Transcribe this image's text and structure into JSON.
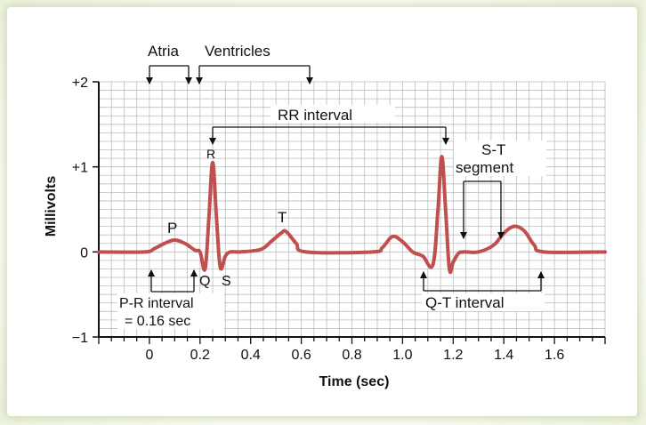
{
  "chart_data": {
    "type": "line",
    "title": "",
    "xlabel": "Time (sec)",
    "ylabel": "Millivolts",
    "xlim": [
      -0.2,
      1.8
    ],
    "ylim": [
      -1,
      2
    ],
    "x_ticks": [
      "0",
      "0.2",
      "0.4",
      "0.6",
      "0.8",
      "1.0",
      "1.2",
      "1.4",
      "1.6"
    ],
    "y_ticks": [
      "+2",
      "+1",
      "0",
      "−1"
    ],
    "grid": true,
    "colors": {
      "trace": "#c0504d",
      "grid": "#bdbdbd",
      "axis": "#111111"
    },
    "series": [
      {
        "x": [
          -0.2,
          -0.02,
          0.02,
          0.06,
          0.1,
          0.14,
          0.18,
          0.2,
          0.22,
          0.235,
          0.25,
          0.265,
          0.28,
          0.3,
          0.32,
          0.36,
          0.44,
          0.48,
          0.52,
          0.54,
          0.58,
          0.62,
          0.88,
          0.92,
          0.96,
          1.0,
          1.04,
          1.08,
          1.12,
          1.14,
          1.155,
          1.17,
          1.185,
          1.2,
          1.22,
          1.24,
          1.3,
          1.36,
          1.4,
          1.44,
          1.48,
          1.52,
          1.56,
          1.8
        ],
        "y": [
          0,
          0,
          0.04,
          0.1,
          0.14,
          0.1,
          0.02,
          0,
          -0.2,
          0.4,
          1.05,
          0.4,
          -0.18,
          -0.05,
          0,
          0,
          0.03,
          0.12,
          0.22,
          0.24,
          0.1,
          0,
          0,
          0.05,
          0.18,
          0.12,
          0,
          -0.05,
          -0.15,
          0.5,
          1.12,
          0.5,
          -0.2,
          -0.12,
          -0.02,
          0,
          0,
          0.08,
          0.22,
          0.3,
          0.25,
          0.08,
          0,
          0
        ]
      }
    ],
    "annotations": {
      "wave_labels": {
        "p": "P",
        "r": "R",
        "q": "Q",
        "s": "S",
        "t": "T"
      },
      "atria": "Atria",
      "ventricles": "Ventricles",
      "rr_interval": "RR interval",
      "st_segment_line1": "S-T",
      "st_segment_line2": "segment",
      "pr_interval_line1": "P-R interval",
      "pr_interval_line2": "= 0.16 sec",
      "qt_interval": "Q-T interval"
    }
  }
}
